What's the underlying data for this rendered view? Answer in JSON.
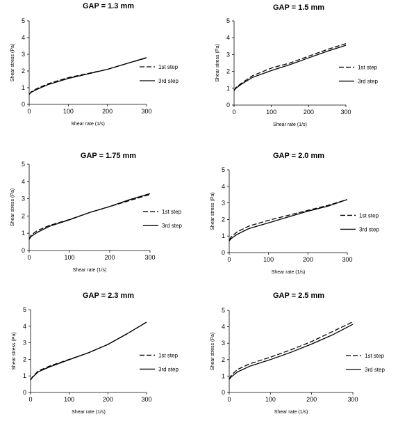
{
  "chart_data": [
    {
      "type": "line",
      "title": "GAP = 1.3 mm",
      "xlabel": "Shear rate (1/s)",
      "ylabel": "Shear stress (Pa)",
      "xlim": [
        0,
        300
      ],
      "ylim": [
        0,
        5
      ],
      "xticks": [
        "0",
        "100",
        "200",
        "300"
      ],
      "yticks": [
        "0",
        "1",
        "2",
        "3",
        "4",
        "5"
      ],
      "grid": false,
      "legend_position": "right",
      "series": [
        {
          "name": "1st step",
          "style": "dashed",
          "x": [
            0,
            5,
            20,
            50,
            100,
            150,
            200,
            250,
            300
          ],
          "y": [
            0.6,
            0.75,
            0.95,
            1.25,
            1.6,
            1.85,
            2.1,
            2.45,
            2.78
          ]
        },
        {
          "name": "3rd step",
          "style": "solid",
          "x": [
            0,
            5,
            20,
            50,
            100,
            150,
            200,
            250,
            300
          ],
          "y": [
            0.6,
            0.72,
            0.9,
            1.2,
            1.55,
            1.82,
            2.1,
            2.45,
            2.8
          ]
        }
      ]
    },
    {
      "type": "line",
      "title": "GAP = 1.5 mm",
      "xlabel": "Shear rate (1/s)",
      "ylabel": "Shear stress (Pa)",
      "xlim": [
        0,
        300
      ],
      "ylim": [
        0,
        5
      ],
      "xticks": [
        "0",
        "100",
        "200",
        "300"
      ],
      "yticks": [
        "0",
        "1",
        "2",
        "3",
        "4",
        "5"
      ],
      "grid": false,
      "legend_position": "right",
      "series": [
        {
          "name": "1st step",
          "style": "dashed",
          "x": [
            0,
            5,
            20,
            50,
            100,
            150,
            200,
            250,
            300
          ],
          "y": [
            0.85,
            1.05,
            1.3,
            1.75,
            2.2,
            2.5,
            2.9,
            3.3,
            3.65
          ]
        },
        {
          "name": "3rd step",
          "style": "solid",
          "x": [
            0,
            5,
            20,
            50,
            100,
            150,
            200,
            250,
            300
          ],
          "y": [
            0.85,
            1.0,
            1.25,
            1.65,
            2.05,
            2.4,
            2.8,
            3.2,
            3.55
          ]
        }
      ]
    },
    {
      "type": "line",
      "title": "GAP = 1.75 mm",
      "xlabel": "Shear rate (1/s)",
      "ylabel": "Shear stress (Pa)",
      "xlim": [
        0,
        300
      ],
      "ylim": [
        0,
        5
      ],
      "xticks": [
        "0",
        "100",
        "200",
        "300"
      ],
      "yticks": [
        "0",
        "1",
        "2",
        "3",
        "4",
        "5"
      ],
      "grid": false,
      "legend_position": "right",
      "series": [
        {
          "name": "1st step",
          "style": "dashed",
          "x": [
            0,
            5,
            20,
            50,
            100,
            150,
            200,
            250,
            300
          ],
          "y": [
            0.65,
            0.9,
            1.15,
            1.45,
            1.8,
            2.2,
            2.55,
            2.9,
            3.25
          ]
        },
        {
          "name": "3rd step",
          "style": "solid",
          "x": [
            0,
            5,
            20,
            50,
            100,
            150,
            200,
            250,
            300
          ],
          "y": [
            0.65,
            0.82,
            1.05,
            1.4,
            1.78,
            2.2,
            2.55,
            2.95,
            3.3
          ]
        }
      ]
    },
    {
      "type": "line",
      "title": "GAP = 2.0 mm",
      "xlabel": "Shear rate (1/s)",
      "ylabel": "Shear stress (Pa)",
      "xlim": [
        0,
        300
      ],
      "ylim": [
        0,
        5
      ],
      "xticks": [
        "0",
        "100",
        "200",
        "300"
      ],
      "yticks": [
        "0",
        "1",
        "2",
        "3",
        "4",
        "5"
      ],
      "grid": false,
      "legend_position": "right",
      "series": [
        {
          "name": "1st step",
          "style": "dashed",
          "x": [
            0,
            5,
            20,
            50,
            100,
            150,
            200,
            250,
            300
          ],
          "y": [
            0.75,
            0.95,
            1.25,
            1.6,
            1.95,
            2.25,
            2.55,
            2.85,
            3.2
          ]
        },
        {
          "name": "3rd step",
          "style": "solid",
          "x": [
            0,
            5,
            20,
            50,
            100,
            150,
            200,
            250,
            300
          ],
          "y": [
            0.7,
            0.85,
            1.1,
            1.45,
            1.8,
            2.15,
            2.5,
            2.8,
            3.2
          ]
        }
      ]
    },
    {
      "type": "line",
      "title": "GAP = 2.3 mm",
      "xlabel": "Shear rate (1/s)",
      "ylabel": "Shear stress (Pa)",
      "xlim": [
        0,
        300
      ],
      "ylim": [
        0,
        5
      ],
      "xticks": [
        "0",
        "100",
        "200",
        "300"
      ],
      "yticks": [
        "0",
        "1",
        "2",
        "3",
        "4",
        "5"
      ],
      "grid": false,
      "legend_position": "right",
      "series": [
        {
          "name": "1st step",
          "style": "dashed",
          "x": [
            0,
            5,
            20,
            50,
            100,
            150,
            200,
            250,
            300
          ],
          "y": [
            0.75,
            0.95,
            1.3,
            1.6,
            2.0,
            2.4,
            2.9,
            3.55,
            4.25
          ]
        },
        {
          "name": "3rd step",
          "style": "solid",
          "x": [
            0,
            5,
            20,
            50,
            100,
            150,
            200,
            250,
            300
          ],
          "y": [
            0.75,
            0.92,
            1.25,
            1.55,
            1.98,
            2.4,
            2.9,
            3.55,
            4.25
          ]
        }
      ]
    },
    {
      "type": "line",
      "title": "GAP = 2.5 mm",
      "xlabel": "Shear rate (1/s)",
      "ylabel": "Shear stress (Pa)",
      "xlim": [
        0,
        300
      ],
      "ylim": [
        0,
        5
      ],
      "xticks": [
        "0",
        "100",
        "200",
        "300"
      ],
      "yticks": [
        "0",
        "1",
        "2",
        "3",
        "4",
        "5"
      ],
      "grid": false,
      "legend_position": "right",
      "series": [
        {
          "name": "1st step",
          "style": "dashed",
          "x": [
            0,
            5,
            20,
            50,
            100,
            150,
            200,
            250,
            300
          ],
          "y": [
            0.8,
            1.05,
            1.4,
            1.75,
            2.15,
            2.6,
            3.1,
            3.7,
            4.3
          ]
        },
        {
          "name": "3rd step",
          "style": "solid",
          "x": [
            0,
            5,
            20,
            50,
            100,
            150,
            200,
            250,
            300
          ],
          "y": [
            0.8,
            0.95,
            1.25,
            1.6,
            2.0,
            2.45,
            2.95,
            3.5,
            4.15
          ]
        }
      ]
    }
  ]
}
